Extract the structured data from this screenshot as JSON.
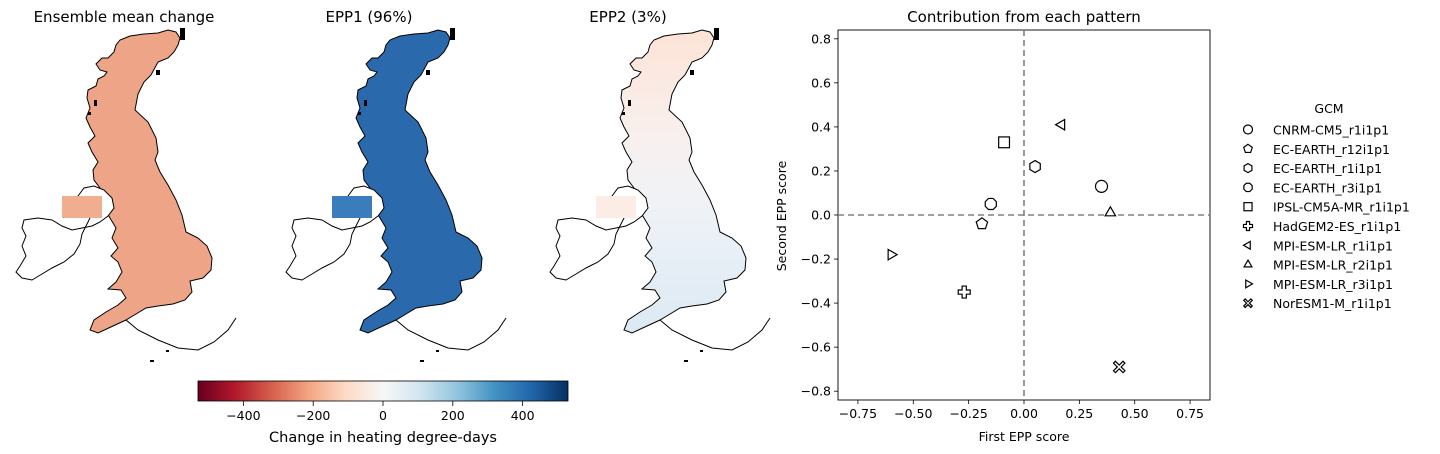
{
  "maps": [
    {
      "title": "Ensemble mean change",
      "fill": "#eda487",
      "inset": "#f0ad8f",
      "fill_name": "uk-fill-change"
    },
    {
      "title": "EPP1 (96%)",
      "fill": "#2a6aac",
      "inset": "#3a7cbc",
      "fill_name": "uk-fill-epp1"
    },
    {
      "title": "EPP2 (3%)",
      "fill": "#f2f3f7",
      "inset": "#fbece6",
      "fill_name": "uk-fill-epp2"
    }
  ],
  "colorbar": {
    "label": "Change in heating degree-days",
    "range": [
      -530,
      530
    ],
    "ticks": [
      -400,
      -200,
      0,
      200,
      400
    ],
    "tick_labels": [
      "−400",
      "−200",
      "0",
      "200",
      "400"
    ],
    "colormap": "RdBu"
  },
  "chart_data": {
    "type": "scatter",
    "title": "Contribution from each pattern",
    "xlabel": "First EPP score",
    "ylabel": "Second EPP score",
    "xlim": [
      -0.84,
      0.84
    ],
    "ylim": [
      -0.84,
      0.84
    ],
    "xticks": [
      -0.75,
      -0.5,
      -0.25,
      0.0,
      0.25,
      0.5,
      0.75
    ],
    "xtick_labels": [
      "−0.75",
      "−0.50",
      "−0.25",
      "0.00",
      "0.25",
      "0.50",
      "0.75"
    ],
    "yticks": [
      -0.8,
      -0.6,
      -0.4,
      -0.2,
      0.0,
      0.2,
      0.4,
      0.6,
      0.8
    ],
    "ytick_labels": [
      "−0.8",
      "−0.6",
      "−0.4",
      "−0.2",
      "0.0",
      "0.2",
      "0.4",
      "0.6",
      "0.8"
    ],
    "reference_lines": {
      "x": 0,
      "y": 0,
      "style": "dashed",
      "color": "#808080"
    },
    "legend": {
      "title": "GCM",
      "placement": "right-outside"
    },
    "points": [
      {
        "name": "CNRM-CM5_r1i1p1",
        "marker": "circle",
        "x": 0.35,
        "y": 0.13
      },
      {
        "name": "EC-EARTH_r12i1p1",
        "marker": "pentagon",
        "x": -0.19,
        "y": -0.04
      },
      {
        "name": "EC-EARTH_r1i1p1",
        "marker": "hexagon",
        "x": 0.05,
        "y": 0.22
      },
      {
        "name": "EC-EARTH_r3i1p1",
        "marker": "octagon",
        "x": -0.15,
        "y": 0.05
      },
      {
        "name": "IPSL-CM5A-MR_r1i1p1",
        "marker": "square",
        "x": -0.09,
        "y": 0.33
      },
      {
        "name": "HadGEM2-ES_r1i1p1",
        "marker": "plus",
        "x": -0.27,
        "y": -0.35
      },
      {
        "name": "MPI-ESM-LR_r1i1p1",
        "marker": "triangle-left",
        "x": 0.17,
        "y": 0.41
      },
      {
        "name": "MPI-ESM-LR_r2i1p1",
        "marker": "triangle-up",
        "x": 0.39,
        "y": 0.01
      },
      {
        "name": "MPI-ESM-LR_r3i1p1",
        "marker": "triangle-right",
        "x": -0.6,
        "y": -0.18
      },
      {
        "name": "NorESM1-M_r1i1p1",
        "marker": "x-filled",
        "x": 0.43,
        "y": -0.69
      }
    ]
  }
}
